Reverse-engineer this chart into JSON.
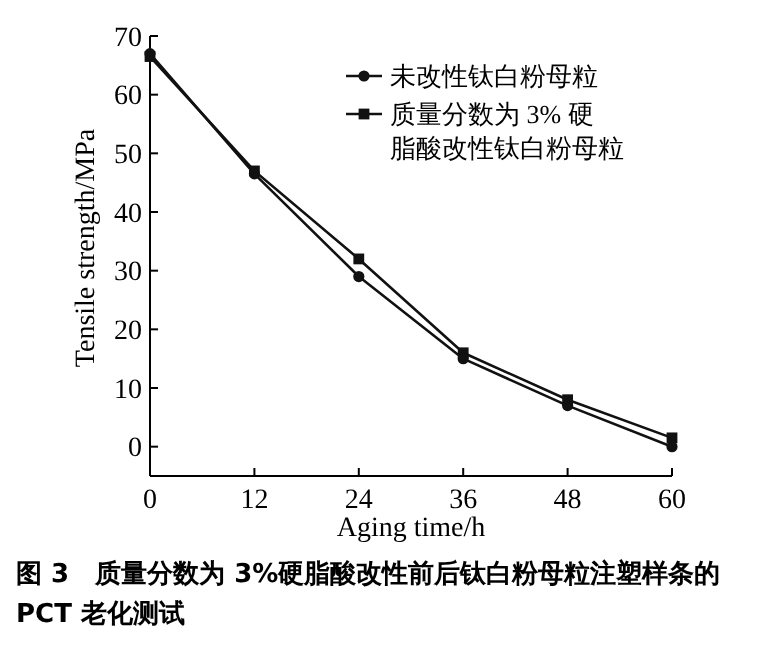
{
  "chart_data": {
    "type": "line",
    "xlabel": "Aging time/h",
    "ylabel": "Tensile strength/MPa",
    "x": [
      0,
      12,
      24,
      36,
      48,
      60
    ],
    "series": [
      {
        "name": "未改性钛白粉母粒",
        "color": "#111111",
        "marker": "circle",
        "values": [
          67,
          46.5,
          29,
          15,
          7,
          0
        ]
      },
      {
        "name": "质量分数为 3% 硬脂酸改性钛白粉母粒",
        "color": "#111111",
        "marker": "square",
        "values": [
          66.5,
          47,
          32,
          16,
          8,
          1.5
        ]
      }
    ],
    "xlim": [
      0,
      60
    ],
    "xticks": [
      0,
      12,
      24,
      36,
      48,
      60
    ],
    "ylim": [
      -5,
      70
    ],
    "yticks": [
      0,
      10,
      20,
      30,
      40,
      50,
      60,
      70
    ],
    "grid": false,
    "legend": "top right",
    "line_style": "solid",
    "annotations": [
      "图 3　质量分数为 3%硬脂酸改性前后钛白粉母粒注塑样条的 PCT 老化测试"
    ]
  }
}
